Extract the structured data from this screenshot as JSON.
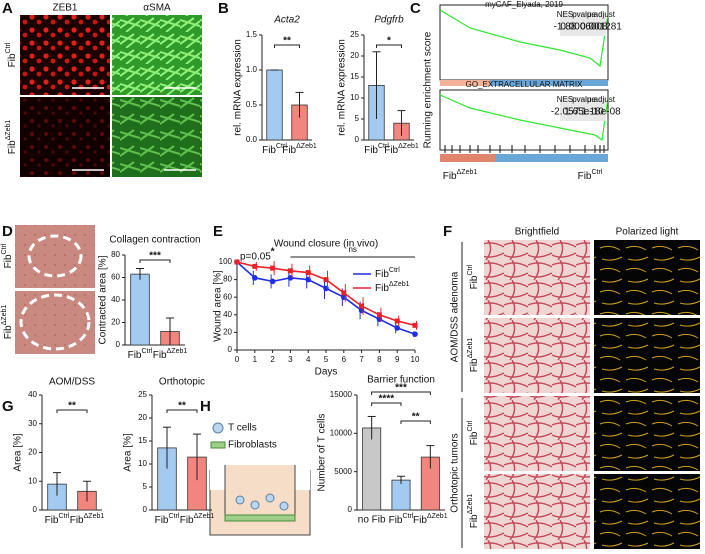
{
  "panels": {
    "letters": [
      "A",
      "B",
      "C",
      "D",
      "E",
      "F",
      "G",
      "H"
    ],
    "a": {
      "columns": [
        "ZEB1",
        "αSMA"
      ],
      "rows": [
        [
          "Fib",
          "Ctrl"
        ],
        [
          "Fib",
          "ΔZeb1"
        ]
      ]
    },
    "c": {
      "ylabel": "Running enrichment score",
      "plots": [
        {
          "title": "myCAF_Elyada, 2019",
          "headers": [
            "NES",
            "pvalue",
            "p.adjust"
          ],
          "row": [
            "-1.88",
            "0.0006008",
            "0.001281"
          ]
        },
        {
          "title": "GO_EXTRACELLULAR MATRIX",
          "headers": [
            "NES",
            "pvalue",
            "p.adjust"
          ],
          "row": [
            "-2.057",
            "1.65e-10",
            "1.18e-08"
          ]
        }
      ],
      "xlabels": [
        [
          "Fib",
          "ΔZeb1"
        ],
        [
          "Fib",
          "Ctrl"
        ]
      ]
    },
    "d": {
      "rows": [
        [
          "Fib",
          "Ctrl"
        ],
        [
          "Fib",
          "ΔZeb1"
        ]
      ]
    },
    "f": {
      "columns": [
        "Brightfield",
        "Polarized light"
      ],
      "groups": [
        "AOM/DSS adenoma",
        "Orthotopic tumors"
      ],
      "rows": [
        [
          "Fib",
          "Ctrl"
        ],
        [
          "Fib",
          "ΔZeb1"
        ],
        [
          "Fib",
          "Ctrl"
        ],
        [
          "Fib",
          "ΔZeb1"
        ]
      ]
    },
    "h": {
      "legend": [
        "T cells",
        "Fibroblasts"
      ]
    }
  },
  "chart_data": [
    {
      "type": "bar",
      "title": "Acta2",
      "ylabel": "rel. mRNA expression",
      "categories": [
        [
          "Fib",
          "Ctrl"
        ],
        [
          "Fib",
          "ΔZeb1"
        ]
      ],
      "values": [
        1.0,
        0.5
      ],
      "errors": [
        0,
        0.18
      ],
      "colors": [
        "#a3cbf2",
        "#f2857e"
      ],
      "ylim": [
        0,
        1.5
      ],
      "yticks": [
        {
          "value": 0,
          "label": "0.0"
        },
        {
          "value": 0.5,
          "label": "0.5"
        },
        {
          "value": 1,
          "label": "1.0"
        },
        {
          "value": 1.5,
          "label": "1.5"
        }
      ],
      "significance": [
        "**"
      ]
    },
    {
      "type": "bar",
      "title": "Pdgfrb",
      "ylabel": "rel. mRNA expression",
      "categories": [
        [
          "Fib",
          "Ctrl"
        ],
        [
          "Fib",
          "ΔZeb1"
        ]
      ],
      "values": [
        13,
        4
      ],
      "errors": [
        8,
        3
      ],
      "colors": [
        "#a3cbf2",
        "#f2857e"
      ],
      "ylim": [
        0,
        25
      ],
      "yticks": [
        0,
        5,
        10,
        15,
        20,
        25
      ],
      "significance": [
        "*"
      ]
    },
    {
      "type": "bar",
      "title": "Collagen contraction",
      "ylabel": "Contracted area [%]",
      "categories": [
        [
          "Fib",
          "Ctrl"
        ],
        [
          "Fib",
          "ΔZeb1"
        ]
      ],
      "values": [
        63,
        12
      ],
      "errors": [
        5,
        12
      ],
      "colors": [
        "#a3cbf2",
        "#f2857e"
      ],
      "ylim": [
        0,
        80
      ],
      "yticks": [
        0,
        20,
        40,
        60,
        80
      ],
      "significance": [
        "***"
      ]
    },
    {
      "type": "line",
      "title": "Wound closure (in vivo)",
      "xlabel": "Days",
      "ylabel": "Wound area [%]",
      "x": [
        0,
        1,
        2,
        3,
        4,
        5,
        6,
        7,
        8,
        9,
        10
      ],
      "xlim": [
        0,
        10
      ],
      "xticks": [
        0,
        1,
        2,
        3,
        4,
        5,
        6,
        7,
        8,
        9,
        10
      ],
      "ylim": [
        0,
        100
      ],
      "yticks": [
        0,
        20,
        40,
        60,
        80,
        100
      ],
      "series": [
        {
          "name": [
            "Fib",
            "Ctrl"
          ],
          "color": "#1f2ee6",
          "values": [
            100,
            82,
            78,
            82,
            80,
            70,
            60,
            45,
            35,
            25,
            18
          ],
          "errors": [
            0,
            8,
            8,
            10,
            10,
            12,
            10,
            10,
            8,
            6,
            3
          ]
        },
        {
          "name": [
            "Fib",
            "ΔZeb1"
          ],
          "color": "#e8232b",
          "values": [
            100,
            95,
            93,
            90,
            88,
            80,
            65,
            50,
            40,
            33,
            28
          ],
          "errors": [
            0,
            5,
            8,
            8,
            8,
            10,
            10,
            10,
            8,
            6,
            5
          ]
        }
      ],
      "annotations": [
        "p=0.05",
        "*",
        "ns"
      ]
    },
    {
      "type": "bar",
      "title": "AOM/DSS",
      "ylabel": "Area [%]",
      "categories": [
        [
          "Fib",
          "Ctrl"
        ],
        [
          "Fib",
          "ΔZeb1"
        ]
      ],
      "values": [
        9,
        6.5
      ],
      "errors": [
        4,
        3.5
      ],
      "colors": [
        "#a3cbf2",
        "#f2857e"
      ],
      "ylim": [
        0,
        40
      ],
      "yticks": [
        0,
        10,
        20,
        30,
        40
      ],
      "significance": [
        "**"
      ]
    },
    {
      "type": "bar",
      "title": "Orthotopic",
      "ylabel": "Area [%]",
      "categories": [
        [
          "Fib",
          "Ctrl"
        ],
        [
          "Fib",
          "ΔZeb1"
        ]
      ],
      "values": [
        13.5,
        11.5
      ],
      "errors": [
        4.5,
        5
      ],
      "colors": [
        "#a3cbf2",
        "#f2857e"
      ],
      "ylim": [
        0,
        25
      ],
      "yticks": [
        0,
        5,
        10,
        15,
        20,
        25
      ],
      "significance": [
        "**"
      ]
    },
    {
      "type": "bar",
      "title": "Barrier function",
      "ylabel": "Number of T cells",
      "categories": [
        "no Fib",
        [
          "Fib",
          "Ctrl"
        ],
        [
          "Fib",
          "ΔZeb1"
        ]
      ],
      "values": [
        10700,
        3900,
        6900
      ],
      "errors": [
        1500,
        500,
        1500
      ],
      "colors": [
        "#c8c8c8",
        "#a3cbf2",
        "#f2857e"
      ],
      "ylim": [
        0,
        15000
      ],
      "yticks": [
        0,
        5000,
        10000,
        15000
      ],
      "significance": [
        "****",
        "***",
        "**"
      ]
    }
  ]
}
